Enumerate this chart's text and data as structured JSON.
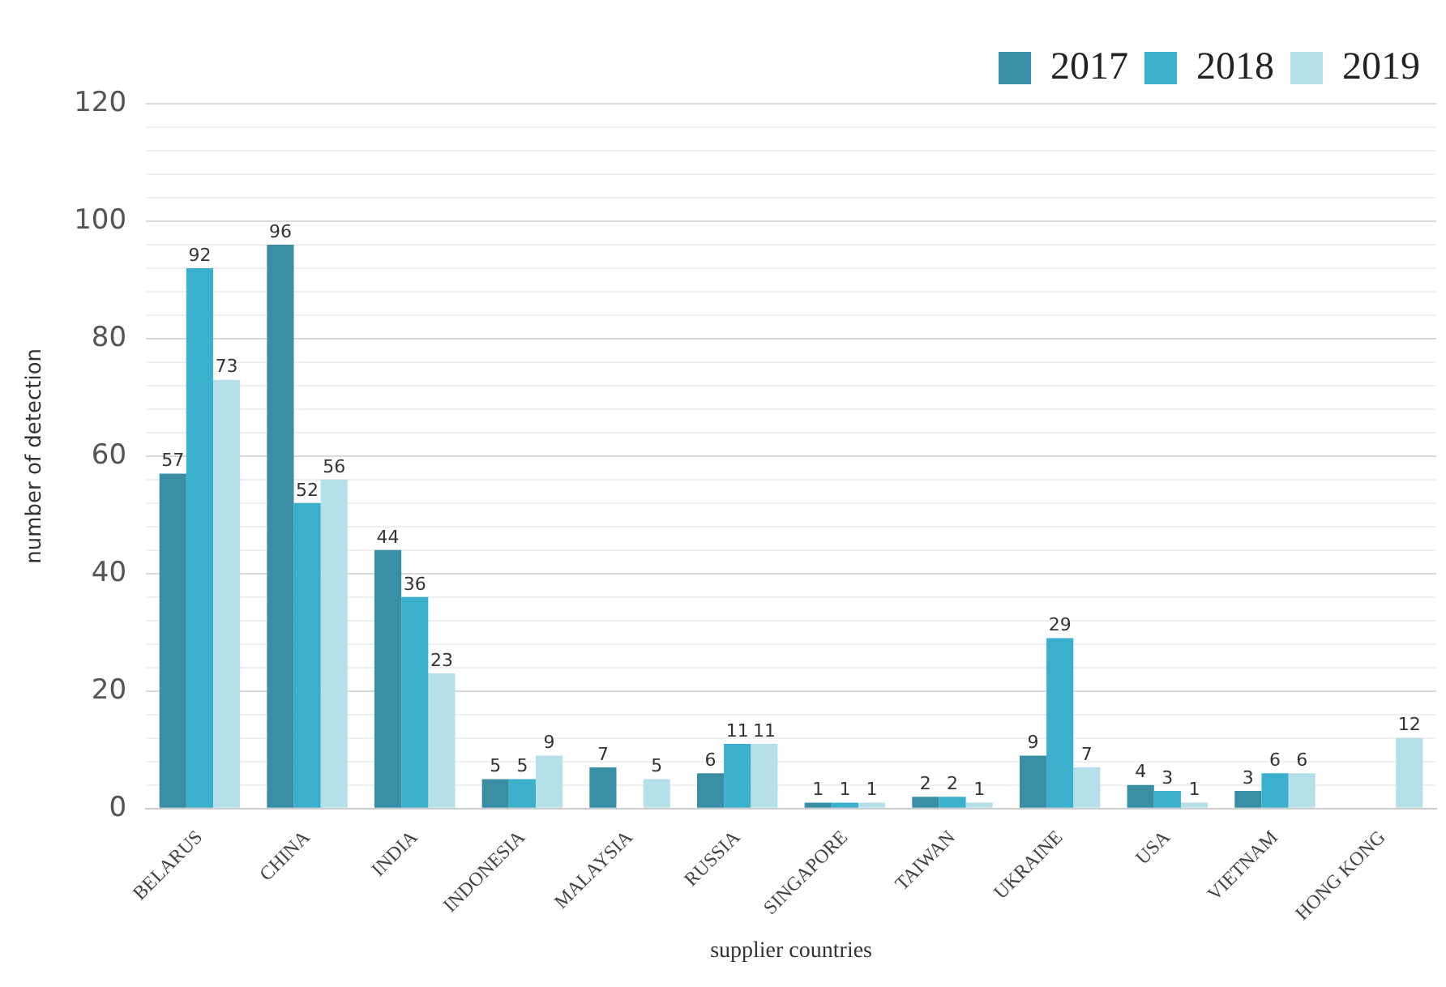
{
  "chart_data": {
    "type": "bar",
    "xlabel": "supplier countries",
    "ylabel": "number of detection",
    "categories": [
      "BELARUS",
      "CHINA",
      "INDIA",
      "INDONESIA",
      "MALAYSIA",
      "RUSSIA",
      "SINGAPORE",
      "TAIWAN",
      "UKRAINE",
      "USA",
      "VIETNAM",
      "HONG KONG"
    ],
    "series": [
      {
        "name": "2017",
        "color": "#3a8ea3",
        "values": [
          57,
          96,
          44,
          5,
          7,
          6,
          1,
          2,
          9,
          4,
          3,
          null
        ]
      },
      {
        "name": "2018",
        "color": "#3bb0cc",
        "values": [
          92,
          52,
          36,
          5,
          null,
          11,
          1,
          2,
          29,
          3,
          6,
          null
        ]
      },
      {
        "name": "2019",
        "color": "#b5e0ea",
        "values": [
          73,
          56,
          23,
          9,
          5,
          11,
          1,
          1,
          7,
          1,
          6,
          12
        ]
      }
    ],
    "ylim": [
      0,
      120
    ],
    "yticks": [
      0,
      {
        "value": 4,
        "label": null
      },
      {
        "value": 8,
        "label": null
      },
      {
        "value": 12,
        "label": null
      },
      {
        "value": 16,
        "label": null
      },
      20,
      {
        "value": 24,
        "label": null
      },
      {
        "value": 28,
        "label": null
      },
      {
        "value": 32,
        "label": null
      },
      {
        "value": 36,
        "label": null
      },
      40,
      {
        "value": 44,
        "label": null
      },
      {
        "value": 48,
        "label": null
      },
      {
        "value": 52,
        "label": null
      },
      {
        "value": 56,
        "label": null
      },
      60,
      {
        "value": 64,
        "label": null
      },
      {
        "value": 68,
        "label": null
      },
      {
        "value": 72,
        "label": null
      },
      {
        "value": 76,
        "label": null
      },
      80,
      {
        "value": 84,
        "label": null
      },
      {
        "value": 88,
        "label": null
      },
      {
        "value": 92,
        "label": null
      },
      {
        "value": 96,
        "label": null
      },
      100,
      {
        "value": 104,
        "label": null
      },
      {
        "value": 108,
        "label": null
      },
      {
        "value": 112,
        "label": null
      },
      {
        "value": 116,
        "label": null
      },
      120
    ],
    "grid": "y",
    "legend": "top right",
    "data_labels": true
  }
}
